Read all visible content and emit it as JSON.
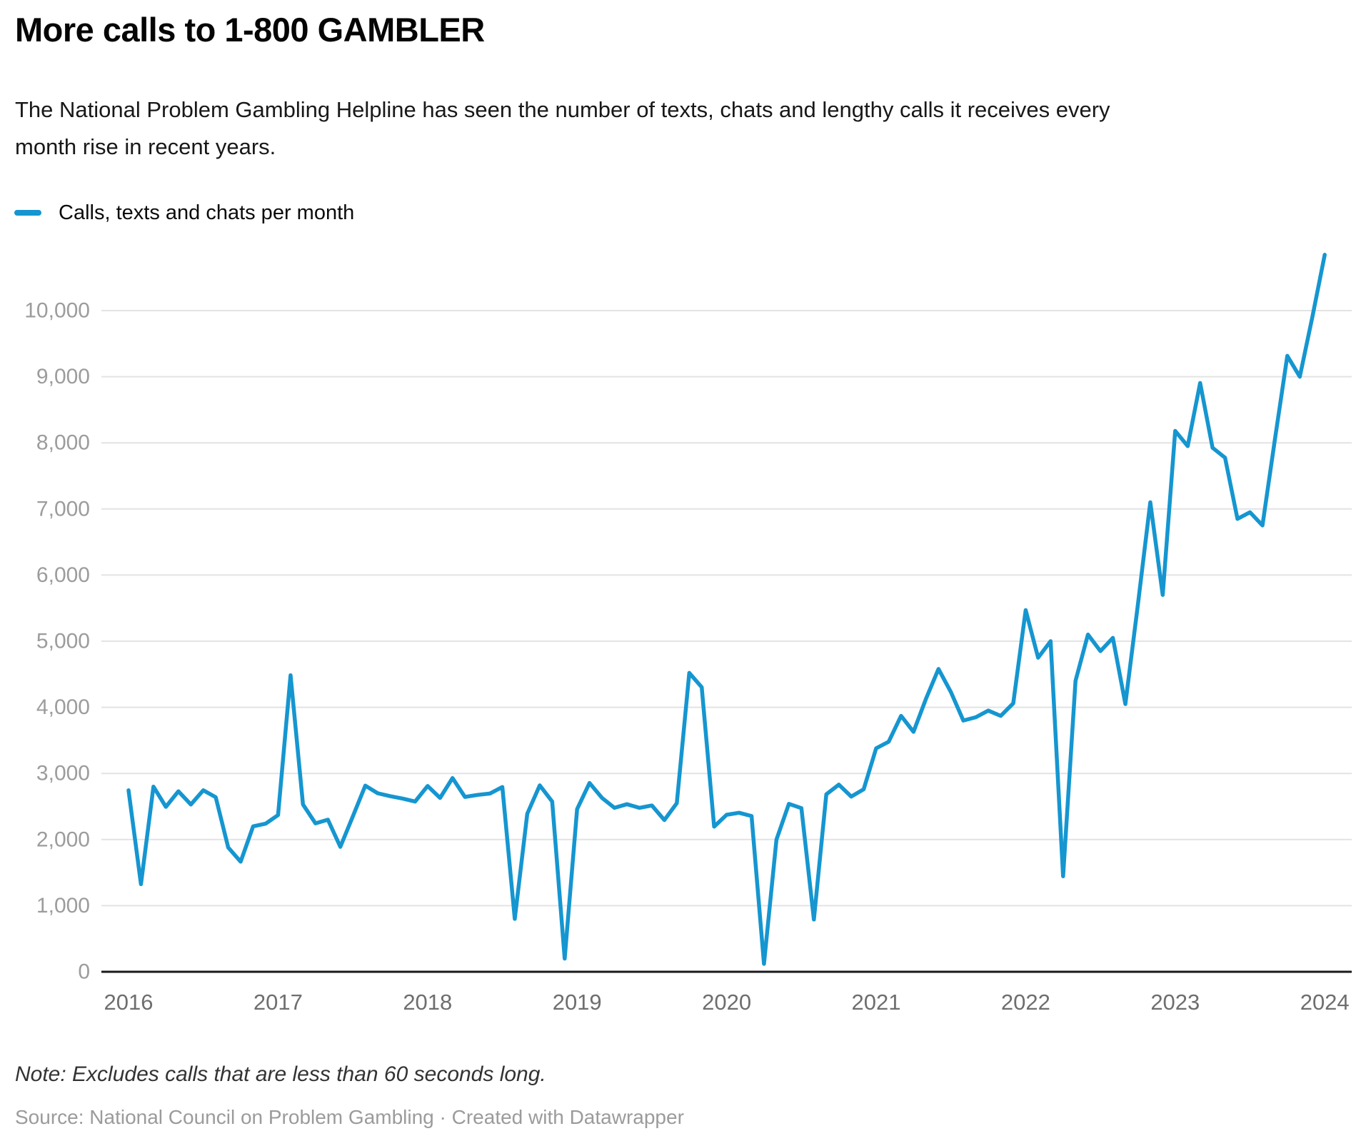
{
  "header": {
    "title": "More calls to 1-800 GAMBLER",
    "subtitle": "The National Problem Gambling Helpline has seen the number of texts, chats and lengthy calls it receives every month rise in recent years."
  },
  "legend": {
    "label": "Calls, texts and chats per month"
  },
  "chart_data": {
    "type": "line",
    "title": "More calls to 1-800 GAMBLER",
    "grid": "horizontal",
    "legend_position": "top-left",
    "line_color": "#1596d0",
    "axis_color": "#1a1a1a",
    "gridline_color": "#e3e3e3",
    "y_tick_color": "#9c9c9c",
    "x_tick_color": "#6e6e6e",
    "ylim": [
      0,
      11400
    ],
    "y_tick_values": [
      0,
      1000,
      2000,
      3000,
      4000,
      5000,
      6000,
      7000,
      8000,
      9000,
      10000
    ],
    "y_tick_labels": [
      "0",
      "1,000",
      "2,000",
      "3,000",
      "4,000",
      "5,000",
      "6,000",
      "7,000",
      "8,000",
      "9,000",
      "10,000"
    ],
    "x_tick_labels": [
      "2016",
      "2017",
      "2018",
      "2019",
      "2020",
      "2021",
      "2022",
      "2023",
      "2024"
    ],
    "series": [
      {
        "name": "Calls, texts and chats per month",
        "start_month": "2016-01",
        "end_month": "2024-01",
        "frequency": "monthly",
        "values": [
          2745,
          1325,
          2800,
          2495,
          2730,
          2530,
          2745,
          2640,
          1880,
          1665,
          2200,
          2240,
          2370,
          4485,
          2530,
          2245,
          2300,
          1890,
          2350,
          2815,
          2700,
          2655,
          2620,
          2575,
          2810,
          2630,
          2930,
          2645,
          2675,
          2695,
          2795,
          800,
          2390,
          2820,
          2575,
          200,
          2460,
          2855,
          2630,
          2480,
          2535,
          2480,
          2515,
          2295,
          2550,
          4520,
          4305,
          2195,
          2375,
          2405,
          2355,
          120,
          2000,
          2540,
          2475,
          790,
          2685,
          2830,
          2650,
          2760,
          3380,
          3480,
          3870,
          3630,
          4130,
          4580,
          4230,
          3800,
          3850,
          3950,
          3870,
          4060,
          5470,
          4750,
          5000,
          1445,
          4400,
          5100,
          4850,
          5050,
          4050,
          5550,
          7100,
          5700,
          8180,
          7950,
          8905,
          7925,
          7775,
          6850,
          6950,
          6750,
          8050,
          9315,
          9000,
          9900,
          10845
        ]
      }
    ]
  },
  "footer": {
    "note": "Note: Excludes calls that are less than 60 seconds long.",
    "source": "Source: National Council on Problem Gambling · Created with Datawrapper"
  }
}
